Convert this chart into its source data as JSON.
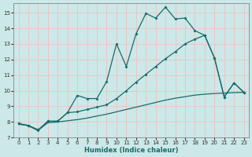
{
  "xlabel": "Humidex (Indice chaleur)",
  "xlim": [
    -0.5,
    23.5
  ],
  "ylim": [
    7,
    15.6
  ],
  "xticks": [
    0,
    1,
    2,
    3,
    4,
    5,
    6,
    7,
    8,
    9,
    10,
    11,
    12,
    13,
    14,
    15,
    16,
    17,
    18,
    19,
    20,
    21,
    22,
    23
  ],
  "yticks": [
    7,
    8,
    9,
    10,
    11,
    12,
    13,
    14,
    15
  ],
  "bg_color": "#cce8e8",
  "grid_color": "#e8c8c8",
  "line_color": "#1a6b6b",
  "line1_x": [
    0,
    1,
    2,
    3,
    4,
    5,
    6,
    7,
    8,
    9,
    10,
    11,
    12,
    13,
    14,
    15,
    16,
    17,
    18,
    19,
    20,
    21,
    22,
    23
  ],
  "line1_y": [
    7.9,
    7.75,
    7.45,
    8.05,
    8.05,
    8.6,
    9.7,
    9.5,
    9.5,
    10.6,
    13.0,
    11.55,
    13.65,
    14.95,
    14.65,
    15.35,
    14.6,
    14.65,
    13.85,
    13.55,
    12.1,
    9.6,
    10.5,
    9.9
  ],
  "line2_x": [
    0,
    1,
    2,
    3,
    4,
    5,
    6,
    7,
    8,
    9,
    10,
    11,
    12,
    13,
    14,
    15,
    16,
    17,
    18,
    19,
    20,
    21,
    22,
    23
  ],
  "line2_y": [
    7.9,
    7.78,
    7.5,
    8.05,
    8.05,
    8.6,
    8.65,
    8.8,
    8.95,
    9.1,
    9.5,
    10.0,
    10.55,
    11.05,
    11.55,
    12.05,
    12.5,
    13.0,
    13.3,
    13.55,
    12.1,
    9.6,
    10.5,
    9.9
  ],
  "line3_x": [
    0,
    1,
    2,
    3,
    4,
    5,
    6,
    7,
    8,
    9,
    10,
    11,
    12,
    13,
    14,
    15,
    16,
    17,
    18,
    19,
    20,
    21,
    22,
    23
  ],
  "line3_y": [
    7.85,
    7.78,
    7.48,
    7.95,
    8.0,
    8.08,
    8.15,
    8.25,
    8.38,
    8.5,
    8.65,
    8.8,
    8.95,
    9.1,
    9.25,
    9.4,
    9.52,
    9.62,
    9.72,
    9.78,
    9.82,
    9.85,
    9.88,
    9.9
  ]
}
